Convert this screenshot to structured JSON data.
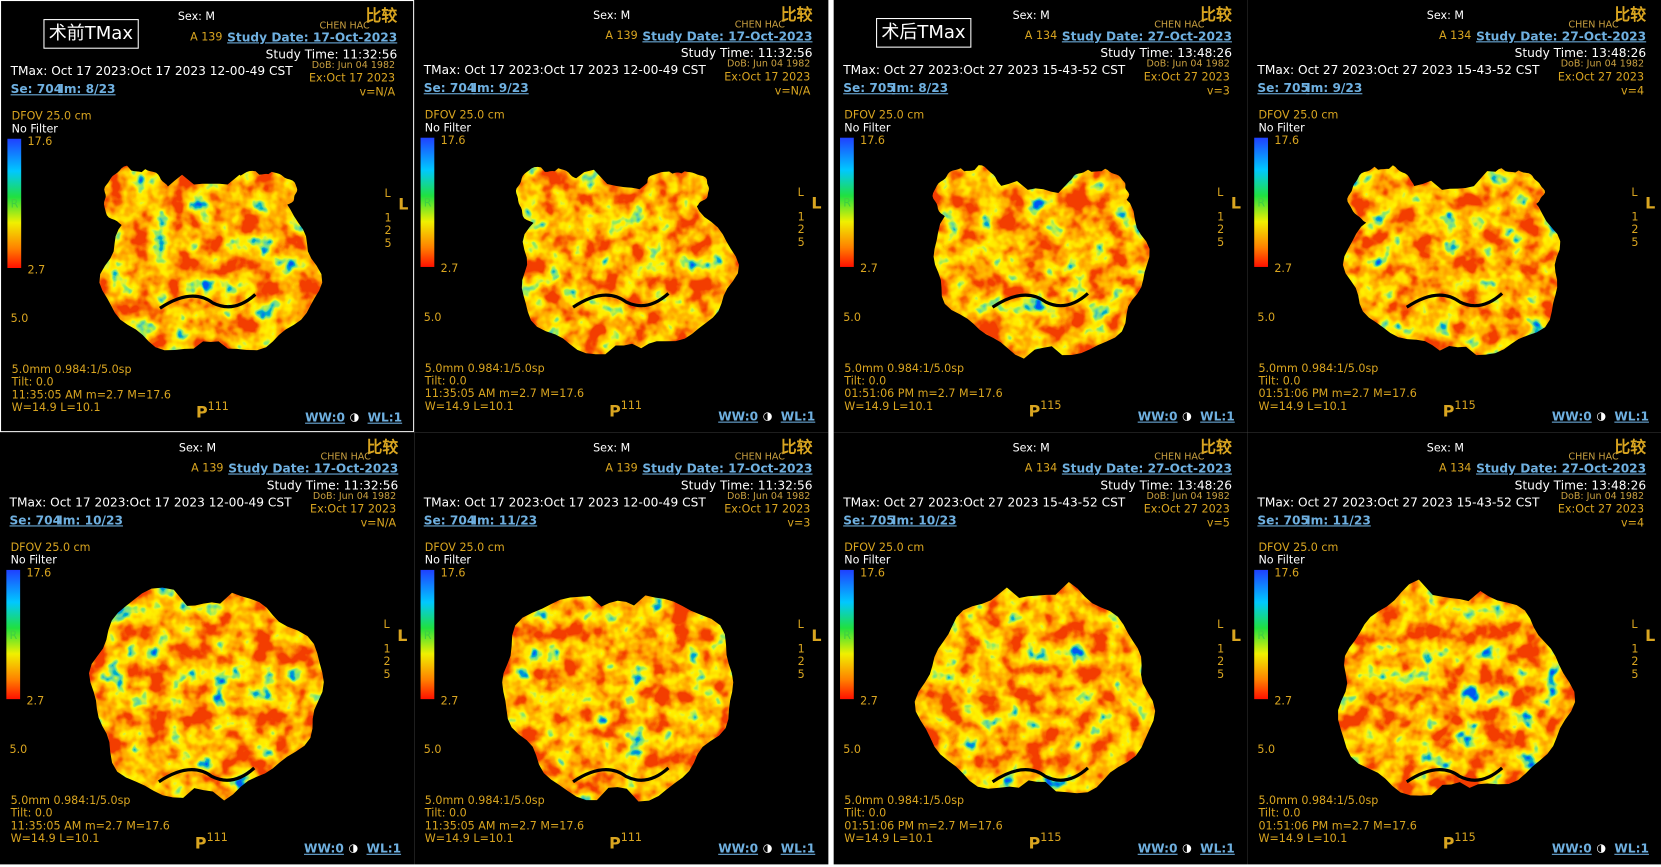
{
  "panels": [
    {
      "label": "术前TMax",
      "sex": "Sex: M",
      "acc": "A 139",
      "compare": "比较",
      "patient": "CHEN HAC",
      "study_date": "Study Date: 17-Oct-2023",
      "study_time": "Study Time: 11:32:56",
      "series_desc": "TMax: Oct 17 2023:Oct 17 2023 12-00-49 CST",
      "dob": "DoB: Jun 04 1982",
      "exam": "Ex:Oct 17 2023",
      "v": "v=N/A",
      "se": "Se: 704",
      "im": "Im: 8/23",
      "dfov": "DFOV 25.0 cm",
      "filter": "No Filter",
      "cmax": "17.6",
      "cmid": "R",
      "cmin": "2.7",
      "scale": "5.0",
      "orient": "L",
      "side": [
        "L",
        "1",
        "2",
        "5"
      ],
      "thick": "5.0mm 0.984:1/5.0sp",
      "tilt": "Tilt: 0.0",
      "acq": "11:35:05 AM m=2.7 M=17.6",
      "wl_text": "W=14.9 L=10.1",
      "p": "P",
      "pnum": "111",
      "ww": "WW:0",
      "wl": "WL:1"
    },
    {
      "sex": "Sex: M",
      "acc": "A 139",
      "compare": "比较",
      "patient": "CHEN HAC",
      "study_date": "Study Date: 17-Oct-2023",
      "study_time": "Study Time: 11:32:56",
      "series_desc": "TMax: Oct 17 2023:Oct 17 2023 12-00-49 CST",
      "dob": "DoB: Jun 04 1982",
      "exam": "Ex:Oct 17 2023",
      "v": "v=N/A",
      "se": "Se: 704",
      "im": "Im: 9/23",
      "dfov": "DFOV 25.0 cm",
      "filter": "No Filter",
      "cmax": "17.6",
      "cmid": "R",
      "cmin": "2.7",
      "scale": "5.0",
      "orient": "L",
      "side": [
        "L",
        "1",
        "2",
        "5"
      ],
      "thick": "5.0mm 0.984:1/5.0sp",
      "tilt": "Tilt: 0.0",
      "acq": "11:35:05 AM m=2.7 M=17.6",
      "wl_text": "W=14.9 L=10.1",
      "p": "P",
      "pnum": "111",
      "ww": "WW:0",
      "wl": "WL:1"
    },
    {
      "sex": "Sex: M",
      "acc": "A 139",
      "compare": "比较",
      "patient": "CHEN HAC",
      "study_date": "Study Date: 17-Oct-2023",
      "study_time": "Study Time: 11:32:56",
      "series_desc": "TMax: Oct 17 2023:Oct 17 2023 12-00-49 CST",
      "dob": "DoB: Jun 04 1982",
      "exam": "Ex:Oct 17 2023",
      "v": "v=N/A",
      "se": "Se: 704",
      "im": "Im: 10/23",
      "dfov": "DFOV 25.0 cm",
      "filter": "No Filter",
      "cmax": "17.6",
      "cmid": "R",
      "cmin": "2.7",
      "scale": "5.0",
      "orient": "L",
      "side": [
        "L",
        "1",
        "2",
        "5"
      ],
      "thick": "5.0mm 0.984:1/5.0sp",
      "tilt": "Tilt: 0.0",
      "acq": "11:35:05 AM m=2.7 M=17.6",
      "wl_text": "W=14.9 L=10.1",
      "p": "P",
      "pnum": "111",
      "ww": "WW:0",
      "wl": "WL:1"
    },
    {
      "sex": "Sex: M",
      "acc": "A 139",
      "compare": "比较",
      "patient": "CHEN HAC",
      "study_date": "Study Date: 17-Oct-2023",
      "study_time": "Study Time: 11:32:56",
      "series_desc": "TMax: Oct 17 2023:Oct 17 2023 12-00-49 CST",
      "dob": "DoB: Jun 04 1982",
      "exam": "Ex:Oct 17 2023",
      "v": "v=3",
      "se": "Se: 704",
      "im": "Im: 11/23",
      "dfov": "DFOV 25.0 cm",
      "filter": "No Filter",
      "cmax": "17.6",
      "cmid": "R",
      "cmin": "2.7",
      "scale": "5.0",
      "orient": "L",
      "side": [
        "L",
        "1",
        "2",
        "5"
      ],
      "thick": "5.0mm 0.984:1/5.0sp",
      "tilt": "Tilt: 0.0",
      "acq": "11:35:05 AM m=2.7 M=17.6",
      "wl_text": "W=14.9 L=10.1",
      "p": "P",
      "pnum": "111",
      "ww": "WW:0",
      "wl": "WL:1"
    },
    {
      "label": "术后TMax",
      "sex": "Sex: M",
      "acc": "A 134",
      "compare": "比较",
      "patient": "CHEN HAC",
      "study_date": "Study Date: 27-Oct-2023",
      "study_time": "Study Time: 13:48:26",
      "series_desc": "TMax: Oct 27 2023:Oct 27 2023 15-43-52 CST",
      "dob": "DoB: Jun 04 1982",
      "exam": "Ex:Oct 27 2023",
      "v": "v=3",
      "se": "Se: 705",
      "im": "Im: 8/23",
      "dfov": "DFOV 25.0 cm",
      "filter": "No Filter",
      "cmax": "17.6",
      "cmid": "R",
      "cmin": "2.7",
      "scale": "5.0",
      "orient": "L",
      "side": [
        "L",
        "1",
        "2",
        "5"
      ],
      "thick": "5.0mm 0.984:1/5.0sp",
      "tilt": "Tilt: 0.0",
      "acq": "01:51:06 PM m=2.7 M=17.6",
      "wl_text": "W=14.9 L=10.1",
      "p": "P",
      "pnum": "115",
      "ww": "WW:0",
      "wl": "WL:1"
    },
    {
      "sex": "Sex: M",
      "acc": "A 134",
      "compare": "比较",
      "patient": "CHEN HAC",
      "study_date": "Study Date: 27-Oct-2023",
      "study_time": "Study Time: 13:48:26",
      "series_desc": "TMax: Oct 27 2023:Oct 27 2023 15-43-52 CST",
      "dob": "DoB: Jun 04 1982",
      "exam": "Ex:Oct 27 2023",
      "v": "v=4",
      "se": "Se: 705",
      "im": "Im: 9/23",
      "dfov": "DFOV 25.0 cm",
      "filter": "No Filter",
      "cmax": "17.6",
      "cmid": "R",
      "cmin": "2.7",
      "scale": "5.0",
      "orient": "L",
      "side": [
        "L",
        "1",
        "2",
        "5"
      ],
      "thick": "5.0mm 0.984:1/5.0sp",
      "tilt": "Tilt: 0.0",
      "acq": "01:51:06 PM m=2.7 M=17.6",
      "wl_text": "W=14.9 L=10.1",
      "p": "P",
      "pnum": "115",
      "ww": "WW:0",
      "wl": "WL:1"
    },
    {
      "sex": "Sex: M",
      "acc": "A 134",
      "compare": "比较",
      "patient": "CHEN HAC",
      "study_date": "Study Date: 27-Oct-2023",
      "study_time": "Study Time: 13:48:26",
      "series_desc": "TMax: Oct 27 2023:Oct 27 2023 15-43-52 CST",
      "dob": "DoB: Jun 04 1982",
      "exam": "Ex:Oct 27 2023",
      "v": "v=5",
      "se": "Se: 705",
      "im": "Im: 10/23",
      "dfov": "DFOV 25.0 cm",
      "filter": "No Filter",
      "cmax": "17.6",
      "cmid": "R",
      "cmin": "2.7",
      "scale": "5.0",
      "orient": "L",
      "side": [
        "L",
        "1",
        "2",
        "5"
      ],
      "thick": "5.0mm 0.984:1/5.0sp",
      "tilt": "Tilt: 0.0",
      "acq": "01:51:06 PM m=2.7 M=17.6",
      "wl_text": "W=14.9 L=10.1",
      "p": "P",
      "pnum": "115",
      "ww": "WW:0",
      "wl": "WL:1"
    },
    {
      "sex": "Sex: M",
      "acc": "A 134",
      "compare": "比较",
      "patient": "CHEN HAC",
      "study_date": "Study Date: 27-Oct-2023",
      "study_time": "Study Time: 13:48:26",
      "series_desc": "TMax: Oct 27 2023:Oct 27 2023 15-43-52 CST",
      "dob": "DoB: Jun 04 1982",
      "exam": "Ex:Oct 27 2023",
      "v": "v=4",
      "se": "Se: 705",
      "im": "Im: 11/23",
      "dfov": "DFOV 25.0 cm",
      "filter": "No Filter",
      "cmax": "17.6",
      "cmid": "R",
      "cmin": "2.7",
      "scale": "5.0",
      "orient": "L",
      "side": [
        "L",
        "1",
        "2",
        "5"
      ],
      "thick": "5.0mm 0.984:1/5.0sp",
      "tilt": "Tilt: 0.0",
      "acq": "01:51:06 PM m=2.7 M=17.6",
      "wl_text": "W=14.9 L=10.1",
      "p": "P",
      "pnum": "115",
      "ww": "WW:0",
      "wl": "WL:1"
    }
  ]
}
